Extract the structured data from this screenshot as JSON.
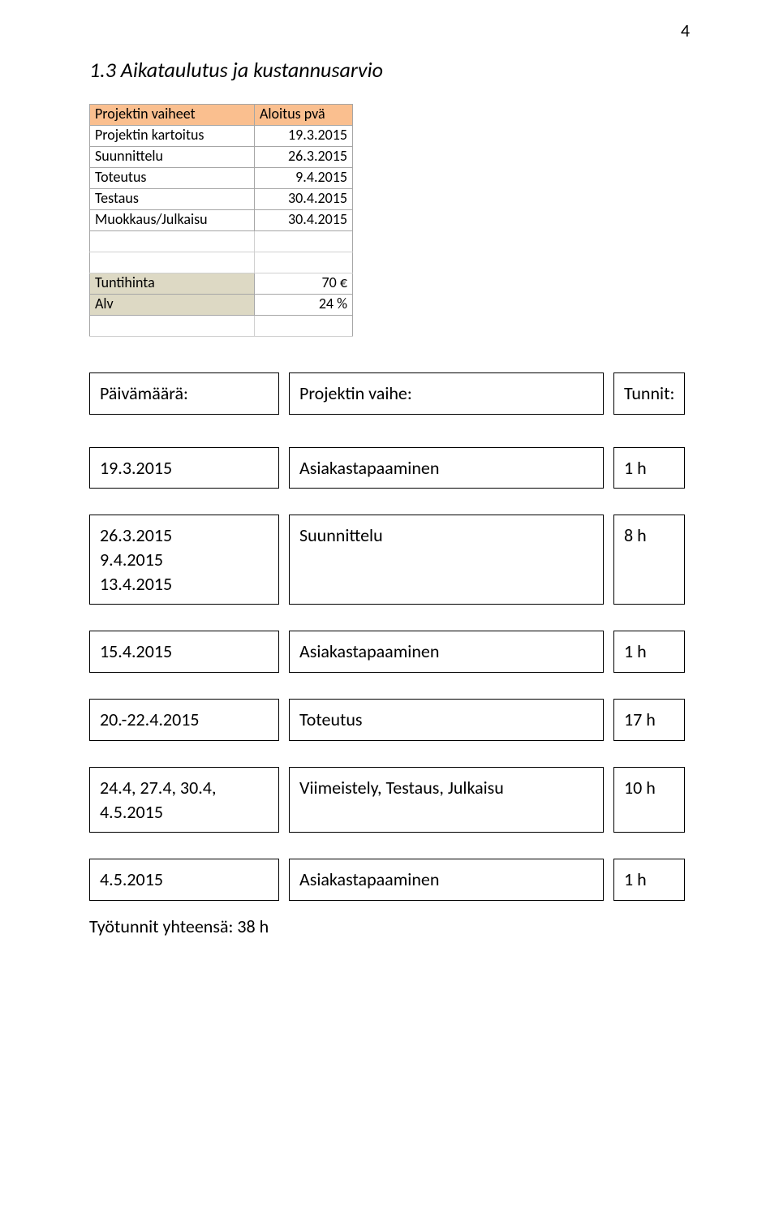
{
  "page_number": "4",
  "section_heading": "1.3 Aikataulutus ja kustannusarvio",
  "spreadsheet": {
    "header": {
      "col_a": "Projektin vaiheet",
      "col_b": "Aloitus pvä"
    },
    "rows": [
      {
        "label": "Projektin kartoitus",
        "value": "19.3.2015"
      },
      {
        "label": "Suunnittelu",
        "value": "26.3.2015"
      },
      {
        "label": "Toteutus",
        "value": "9.4.2015"
      },
      {
        "label": "Testaus",
        "value": "30.4.2015"
      },
      {
        "label": "Muokkaus/Julkaisu",
        "value": "30.4.2015"
      }
    ],
    "params": [
      {
        "label": "Tuntihinta",
        "value": "70 €"
      },
      {
        "label": "Alv",
        "value": "24 %"
      }
    ],
    "colors": {
      "header_bg": "#fabf8f",
      "param_bg": "#ddd9c4",
      "border": "#a6a6a6"
    }
  },
  "log_header": {
    "date": "Päivämäärä:",
    "phase": "Projektin vaihe:",
    "hours": "Tunnit:"
  },
  "log": [
    {
      "dates": [
        "19.3.2015"
      ],
      "phase": "Asiakastapaaminen",
      "hours": "1 h",
      "tall": false
    },
    {
      "dates": [
        "26.3.2015",
        "9.4.2015",
        "13.4.2015"
      ],
      "phase": "Suunnittelu",
      "hours": "8 h",
      "tall": true
    },
    {
      "dates": [
        "15.4.2015"
      ],
      "phase": "Asiakastapaaminen",
      "hours": "1 h",
      "tall": false
    },
    {
      "dates": [
        "20.-22.4.2015"
      ],
      "phase": "Toteutus",
      "hours": "17 h",
      "tall": false
    },
    {
      "dates": [
        "24.4, 27.4, 30.4, 4.5.2015"
      ],
      "phase": "Viimeistely, Testaus, Julkaisu",
      "hours": "10 h",
      "tall": false
    },
    {
      "dates": [
        "4.5.2015"
      ],
      "phase": "Asiakastapaaminen",
      "hours": "1 h",
      "tall": false
    }
  ],
  "total_line": "Työtunnit yhteensä: 38 h"
}
